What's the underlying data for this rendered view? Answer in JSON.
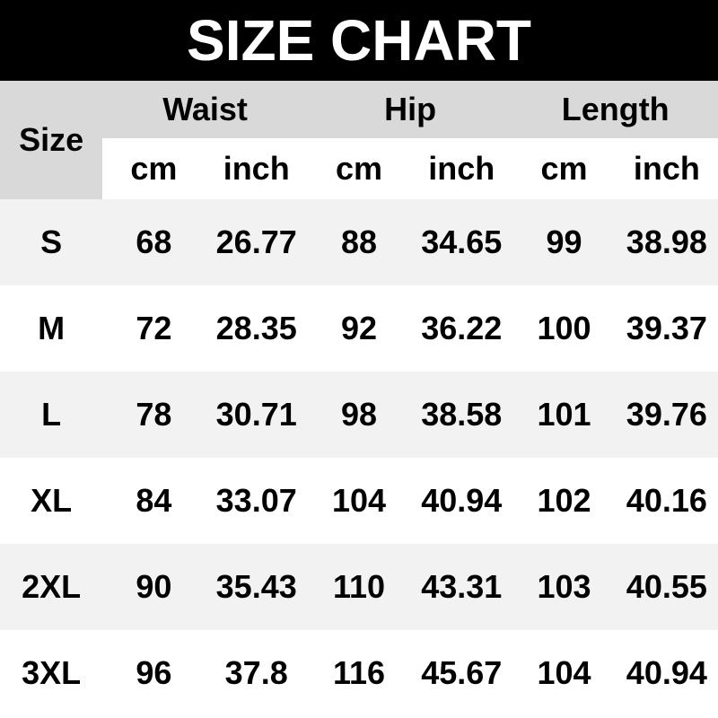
{
  "banner": {
    "title": "SIZE CHART",
    "bg_color": "#000000",
    "text_color": "#ffffff"
  },
  "table": {
    "corner_label": "Size",
    "groups": [
      "Waist",
      "Hip",
      "Length"
    ],
    "units": [
      "cm",
      "inch",
      "cm",
      "inch",
      "cm",
      "inch"
    ],
    "colors": {
      "header_bg": "#d9d9d9",
      "row_stripe_bg": "#f2f2f2",
      "row_bg": "#ffffff",
      "text": "#000000"
    }
  },
  "chart_data": {
    "type": "table",
    "title": "SIZE CHART",
    "column_groups": [
      "Waist",
      "Hip",
      "Length"
    ],
    "columns": [
      "Size",
      "Waist cm",
      "Waist inch",
      "Hip cm",
      "Hip inch",
      "Length cm",
      "Length inch"
    ],
    "rows": [
      [
        "S",
        68,
        26.77,
        88,
        34.65,
        99,
        38.98
      ],
      [
        "M",
        72,
        28.35,
        92,
        36.22,
        100,
        39.37
      ],
      [
        "L",
        78,
        30.71,
        98,
        38.58,
        101,
        39.76
      ],
      [
        "XL",
        84,
        33.07,
        104,
        40.94,
        102,
        40.16
      ],
      [
        "2XL",
        90,
        35.43,
        110,
        43.31,
        103,
        40.55
      ],
      [
        "3XL",
        96,
        37.8,
        116,
        45.67,
        104,
        40.94
      ]
    ]
  }
}
